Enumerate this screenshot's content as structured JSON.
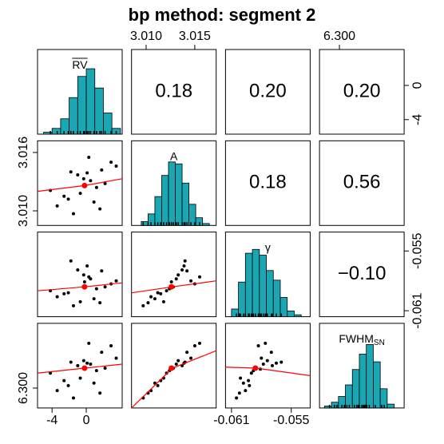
{
  "chart_data": {
    "type": "pairs",
    "title": "bp method: segment 2",
    "variables": [
      {
        "label": "RV",
        "overline": true,
        "lim": [
          -5.7,
          4.2
        ],
        "xticks": [
          -4,
          0
        ],
        "yticks": [
          -4,
          0
        ],
        "mean": -0.2,
        "sample": [
          -2.1,
          0.5,
          1.8,
          -0.7,
          2.9,
          -3.4,
          0.1,
          1.2,
          -1.5,
          -0.3,
          3.5,
          -4.2,
          0.9,
          -1.0,
          2.2,
          -2.6,
          0.3,
          1.6,
          -0.2,
          -1.8
        ],
        "hist": {
          "bins": [
            -5,
            -4,
            -3,
            -2,
            -1,
            0,
            1,
            2,
            3,
            4
          ],
          "counts": [
            5,
            15,
            40,
            95,
            150,
            170,
            120,
            55,
            15
          ]
        }
      },
      {
        "label": "A",
        "lim": [
          3.0085,
          3.0172
        ],
        "xticks": [
          {
            "value": 3.01,
            "label": "3.010"
          },
          {
            "value": 3.015,
            "label": "3.015"
          }
        ],
        "yticks": [
          {
            "value": 3.01,
            "label": "3.010"
          },
          {
            "value": 3.016,
            "label": "3.016"
          }
        ],
        "mean": 3.0126,
        "sample": [
          3.0112,
          3.0131,
          3.0142,
          3.0118,
          3.015,
          3.0105,
          3.0139,
          3.0124,
          3.0097,
          3.0133,
          3.0146,
          3.0121,
          3.0109,
          3.0137,
          3.0128,
          3.0115,
          3.0155,
          3.0102,
          3.0126,
          3.014
        ],
        "hist": {
          "bins": [
            3.0095,
            3.0102,
            3.0109,
            3.0116,
            3.0123,
            3.013,
            3.0137,
            3.0144,
            3.0151,
            3.0158,
            3.0165
          ],
          "counts": [
            10,
            30,
            75,
            130,
            165,
            160,
            110,
            55,
            20,
            5
          ]
        }
      },
      {
        "label": "γ",
        "lim": [
          -0.0616,
          -0.0531
        ],
        "xticks": [
          -0.061,
          -0.055
        ],
        "yticks": [
          -0.061,
          -0.055
        ],
        "mean": -0.0586,
        "sample": [
          -0.0592,
          -0.0578,
          -0.057,
          -0.0601,
          -0.0583,
          -0.0596,
          -0.0565,
          -0.0588,
          -0.0605,
          -0.0574,
          -0.058,
          -0.059,
          -0.0598,
          -0.0569,
          -0.0586,
          -0.0593,
          -0.0576,
          -0.0602,
          -0.0581,
          -0.056
        ],
        "hist": {
          "bins": [
            -0.061,
            -0.0603,
            -0.0596,
            -0.0589,
            -0.0582,
            -0.0575,
            -0.0568,
            -0.0561,
            -0.0554,
            -0.0547,
            -0.054
          ],
          "counts": [
            20,
            90,
            165,
            175,
            160,
            120,
            95,
            50,
            15,
            5
          ]
        }
      },
      {
        "label": "FWHM",
        "subscript": "SN",
        "lim": [
          6.296,
          6.313
        ],
        "xticks": [
          {
            "value": 6.3,
            "label": "6.300"
          }
        ],
        "yticks": [
          {
            "value": 6.3,
            "label": "6.300"
          }
        ],
        "mean": 6.304,
        "sample": [
          6.3005,
          6.3048,
          6.3072,
          6.302,
          6.3085,
          6.2995,
          6.305,
          6.3035,
          6.298,
          6.3055,
          6.306,
          6.303,
          6.301,
          6.3045,
          6.304,
          6.3015,
          6.309,
          6.299,
          6.3038,
          6.3052
        ],
        "hist": {
          "bins": [
            6.297,
            6.2984,
            6.2998,
            6.3012,
            6.3026,
            6.304,
            6.3054,
            6.3068,
            6.3082,
            6.3096,
            6.311
          ],
          "counts": [
            5,
            15,
            30,
            60,
            100,
            140,
            165,
            120,
            50,
            10
          ]
        }
      }
    ],
    "hist_ylim": [
      0,
      220
    ],
    "point_color": "#000000",
    "mean_color": "#ff0000",
    "bar_color": "#1aa7b3",
    "lower": [
      {
        "x_var": 0,
        "y_var": 1,
        "smooth": {
          "x": [
            -5.7,
            -0.2,
            4.2
          ],
          "values": [
            3.012,
            3.0126,
            3.0133
          ]
        }
      },
      {
        "x_var": 0,
        "y_var": 2,
        "smooth": {
          "x": [
            -5.7,
            -0.2,
            4.2
          ],
          "values": [
            -0.059,
            -0.0586,
            -0.0582
          ]
        }
      },
      {
        "x_var": 1,
        "y_var": 2,
        "smooth": {
          "x": [
            3.0085,
            3.0127,
            3.0172
          ],
          "values": [
            -0.0592,
            -0.0586,
            -0.058
          ]
        }
      },
      {
        "x_var": 0,
        "y_var": 3,
        "smooth": {
          "x": [
            -5.7,
            -0.2,
            4.2
          ],
          "values": [
            6.303,
            6.304,
            6.3048
          ]
        }
      },
      {
        "x_var": 1,
        "y_var": 3,
        "smooth": {
          "x": [
            3.0085,
            3.0127,
            3.0172
          ],
          "values": [
            6.296,
            6.304,
            6.3075
          ]
        }
      },
      {
        "x_var": 2,
        "y_var": 3,
        "smooth": {
          "x": [
            -0.0616,
            -0.0585,
            -0.0531
          ],
          "values": [
            6.3042,
            6.304,
            6.3025
          ]
        }
      }
    ],
    "upper": [
      {
        "x_var": 1,
        "y_var": 0,
        "r": 0.18
      },
      {
        "x_var": 2,
        "y_var": 0,
        "r": {
          "value": 0.2,
          "label": "0.20"
        }
      },
      {
        "x_var": 3,
        "y_var": 0,
        "r": {
          "value": 0.2,
          "label": "0.20"
        }
      },
      {
        "x_var": 2,
        "y_var": 1,
        "r": 0.18
      },
      {
        "x_var": 3,
        "y_var": 1,
        "r": 0.56
      },
      {
        "x_var": 3,
        "y_var": 2,
        "r": {
          "value": -0.1,
          "label": "−0.10"
        }
      }
    ]
  }
}
